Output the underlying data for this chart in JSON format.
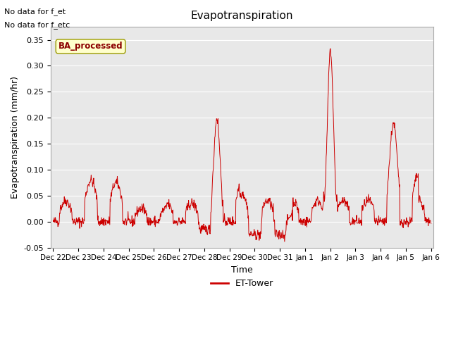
{
  "title": "Evapotranspiration",
  "ylabel": "Evapotranspiration (mm/hr)",
  "xlabel": "Time",
  "ylim": [
    -0.05,
    0.375
  ],
  "line_color": "#cc0000",
  "bg_color": "#e8e8e8",
  "legend_label": "ET-Tower",
  "legend_box_color": "#ffffcc",
  "legend_box_edge": "#999900",
  "ba_processed_text": "BA_processed",
  "no_data_text1": "No data for f_et",
  "no_data_text2": "No data for f_etc",
  "yticks": [
    -0.05,
    0.0,
    0.05,
    0.1,
    0.15,
    0.2,
    0.25,
    0.3,
    0.35
  ],
  "xtick_labels": [
    "Dec 22",
    "Dec 23",
    "Dec 24",
    "Dec 25",
    "Dec 26",
    "Dec 27",
    "Dec 28",
    "Dec 29",
    "Dec 30",
    "Dec 31",
    "Jan 1",
    "Jan 2",
    "Jan 3",
    "Jan 4",
    "Jan 5",
    "Jan 6"
  ],
  "num_points": 1056
}
